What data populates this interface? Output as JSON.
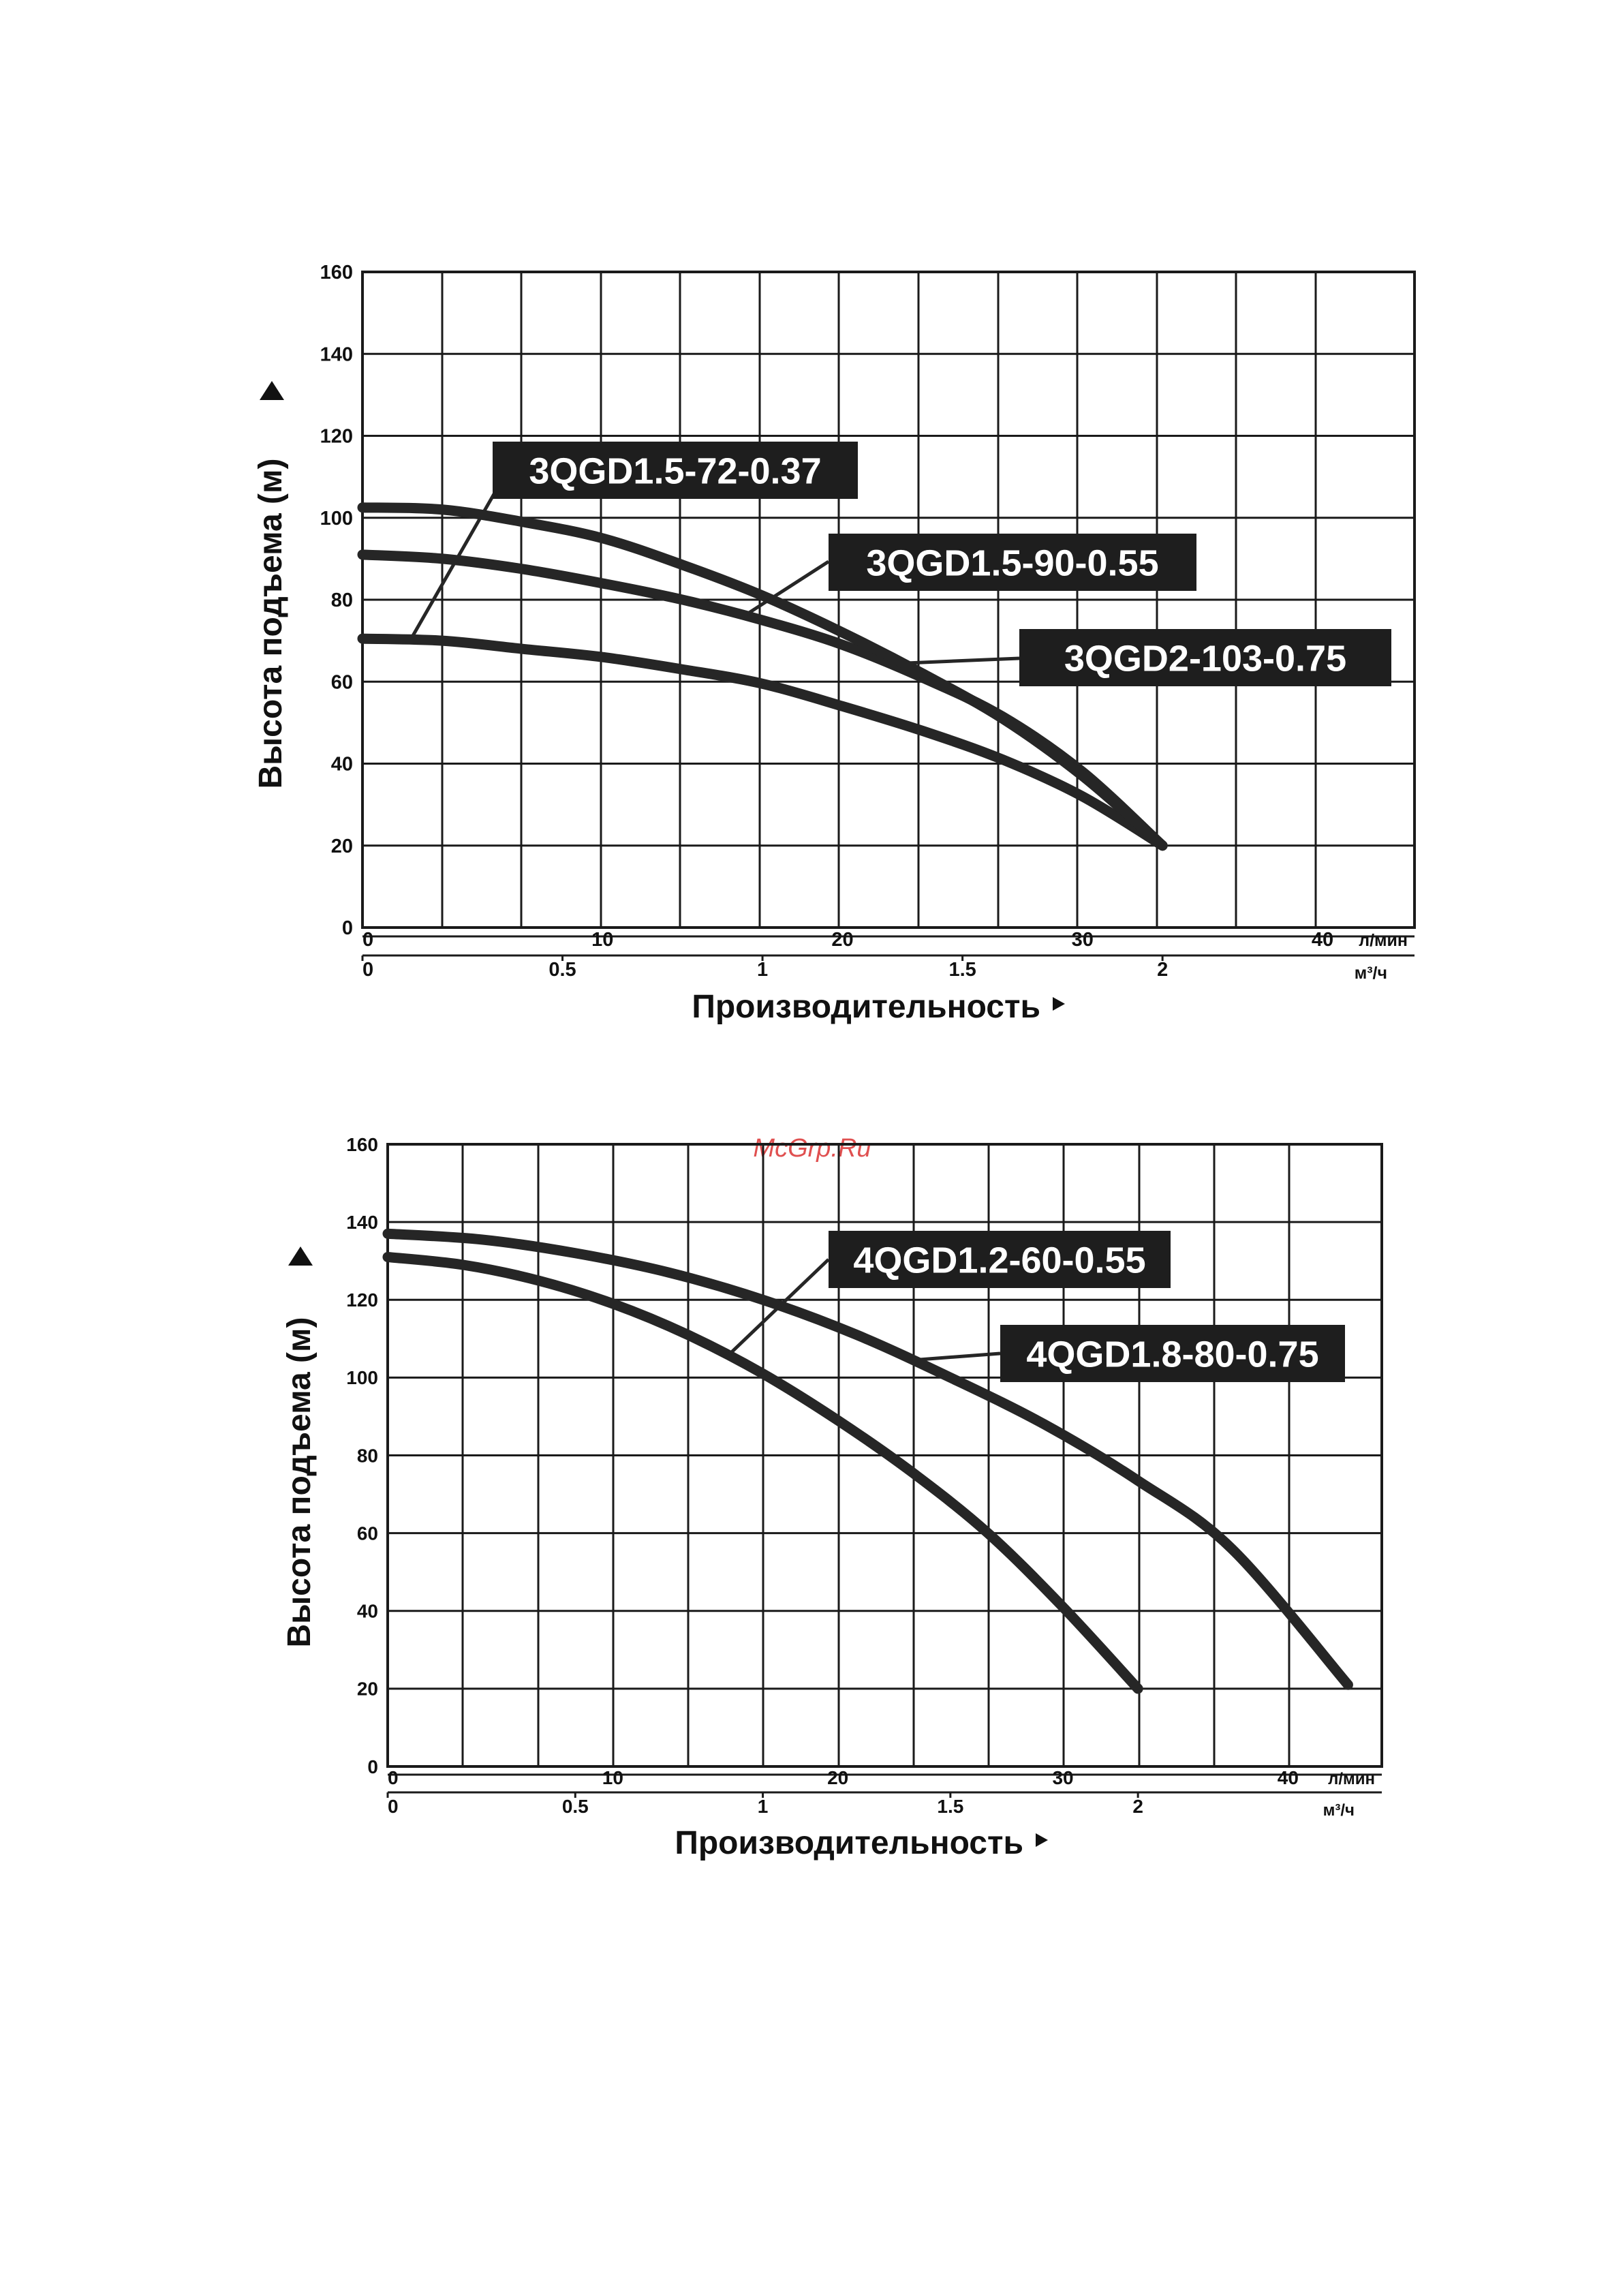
{
  "watermark": "McGrp.Ru",
  "colors": {
    "curve": "#262626",
    "grid": "#1a1a1a",
    "label_bg": "#1e1e1e",
    "label_text": "#ffffff",
    "watermark": "#e05050"
  },
  "chart_data": [
    {
      "type": "line",
      "ylabel": "Высота подъема (м)",
      "xlabel": "Производительность",
      "ylim": [
        0,
        160
      ],
      "yticks": [
        0,
        20,
        40,
        60,
        80,
        100,
        120,
        140,
        160
      ],
      "x_lmin_ticks": [
        {
          "v": 0,
          "t": "0"
        },
        {
          "v": 10,
          "t": "10"
        },
        {
          "v": 20,
          "t": "20"
        },
        {
          "v": 30,
          "t": "30"
        },
        {
          "v": 40,
          "t": "40"
        }
      ],
      "x_lmin_unit": "л/мин",
      "x_m3h_ticks": [
        {
          "v": 0,
          "t": "0"
        },
        {
          "v": 0.5,
          "t": "0.5"
        },
        {
          "v": 1,
          "t": "1"
        },
        {
          "v": 1.5,
          "t": "1.5"
        },
        {
          "v": 2,
          "t": "2"
        }
      ],
      "x_m3h_unit": "м³/ч",
      "xlim_m3h": [
        0,
        2.63
      ],
      "grid": true,
      "series": [
        {
          "name": "3QGD1.5-72-0.37",
          "x": [
            0,
            0.2,
            0.4,
            0.6,
            0.8,
            1.0,
            1.2,
            1.4,
            1.6,
            1.8,
            2.0
          ],
          "y": [
            70.5,
            70,
            68,
            66,
            63,
            59.5,
            54,
            48,
            41,
            32,
            20
          ]
        },
        {
          "name": "3QGD1.5-90-0.55",
          "x": [
            0,
            0.2,
            0.4,
            0.6,
            0.8,
            1.0,
            1.2,
            1.4,
            1.6,
            1.8,
            2.0
          ],
          "y": [
            91,
            90,
            87.5,
            84,
            80,
            75,
            69,
            61,
            51.5,
            38,
            20
          ]
        },
        {
          "name": "3QGD2-103-0.75",
          "x": [
            0,
            0.2,
            0.4,
            0.6,
            0.8,
            1.0,
            1.2,
            1.4,
            1.6,
            1.8,
            2.0
          ],
          "y": [
            102.5,
            102,
            99,
            95,
            88.5,
            81,
            72,
            62,
            51,
            37,
            20
          ]
        }
      ],
      "labels": [
        {
          "text": "3QGD1.5-72-0.37",
          "series": 0
        },
        {
          "text": "3QGD1.5-90-0.55",
          "series": 1
        },
        {
          "text": "3QGD2-103-0.75",
          "series": 2
        }
      ]
    },
    {
      "type": "line",
      "ylabel": "Высота подъема (м)",
      "xlabel": "Производительность",
      "ylim": [
        0,
        160
      ],
      "yticks": [
        0,
        20,
        40,
        60,
        80,
        100,
        120,
        140,
        160
      ],
      "x_lmin_ticks": [
        {
          "v": 0,
          "t": "0"
        },
        {
          "v": 10,
          "t": "10"
        },
        {
          "v": 20,
          "t": "20"
        },
        {
          "v": 30,
          "t": "30"
        },
        {
          "v": 40,
          "t": "40"
        }
      ],
      "x_lmin_unit": "л/мин",
      "x_m3h_ticks": [
        {
          "v": 0,
          "t": "0"
        },
        {
          "v": 0.5,
          "t": "0.5"
        },
        {
          "v": 1,
          "t": "1"
        },
        {
          "v": 1.5,
          "t": "1.5"
        },
        {
          "v": 2,
          "t": "2"
        }
      ],
      "x_m3h_unit": "м³/ч",
      "xlim_m3h": [
        0,
        2.65
      ],
      "grid": true,
      "series": [
        {
          "name": "4QGD1.2-60-0.55",
          "x": [
            0,
            0.2,
            0.4,
            0.6,
            0.8,
            1.0,
            1.2,
            1.4,
            1.6,
            1.8,
            2.0
          ],
          "y": [
            131,
            129,
            125,
            119,
            111,
            101,
            89,
            75.5,
            60,
            41,
            20
          ]
        },
        {
          "name": "4QGD1.8-80-0.75",
          "x": [
            0,
            0.25,
            0.5,
            0.75,
            1.0,
            1.25,
            1.5,
            1.75,
            2.0,
            2.25,
            2.56
          ],
          "y": [
            137,
            135.5,
            132,
            127,
            120,
            111,
            100,
            88,
            73.5,
            56,
            21
          ]
        }
      ],
      "labels": [
        {
          "text": "4QGD1.2-60-0.55",
          "series": 0
        },
        {
          "text": "4QGD1.8-80-0.75",
          "series": 1
        }
      ]
    }
  ]
}
